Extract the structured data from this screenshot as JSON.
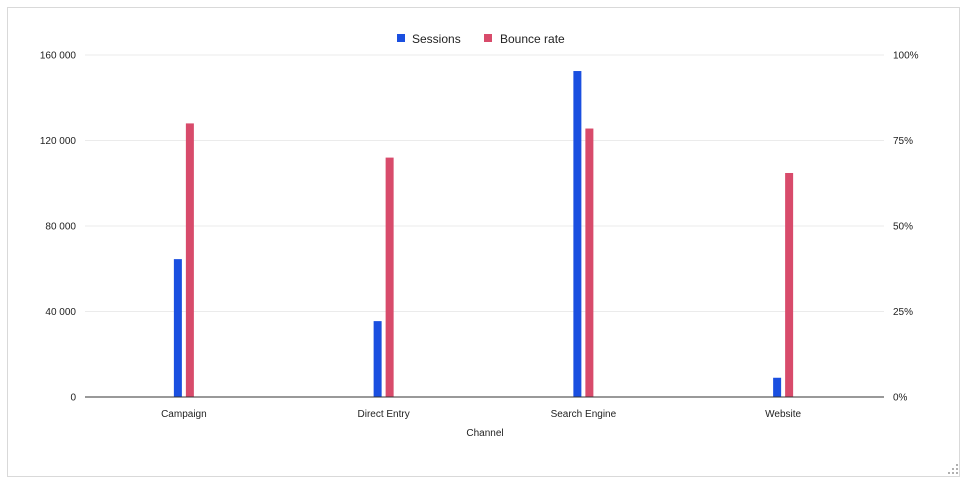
{
  "chart_data": {
    "type": "bar",
    "categories": [
      "Campaign",
      "Direct Entry",
      "Search Engine",
      "Website"
    ],
    "xlabel": "Channel",
    "series": [
      {
        "name": "Sessions",
        "axis": "left",
        "color": "#1a4fe0",
        "values": [
          64500,
          35500,
          152500,
          9000
        ]
      },
      {
        "name": "Bounce rate",
        "axis": "right",
        "color": "#d84b6b",
        "values": [
          0.8,
          0.7,
          0.785,
          0.655
        ]
      }
    ],
    "y_left": {
      "ylim": [
        0,
        160000
      ],
      "ticks": [
        0,
        40000,
        80000,
        120000,
        160000
      ],
      "tick_labels": [
        "0",
        "40 000",
        "80 000",
        "120 000",
        "160 000"
      ]
    },
    "y_right": {
      "ylim": [
        0,
        1
      ],
      "ticks": [
        0,
        0.25,
        0.5,
        0.75,
        1
      ],
      "tick_labels": [
        "0%",
        "25%",
        "50%",
        "75%",
        "100%"
      ]
    },
    "legend_position": "top-center",
    "grid": true
  }
}
